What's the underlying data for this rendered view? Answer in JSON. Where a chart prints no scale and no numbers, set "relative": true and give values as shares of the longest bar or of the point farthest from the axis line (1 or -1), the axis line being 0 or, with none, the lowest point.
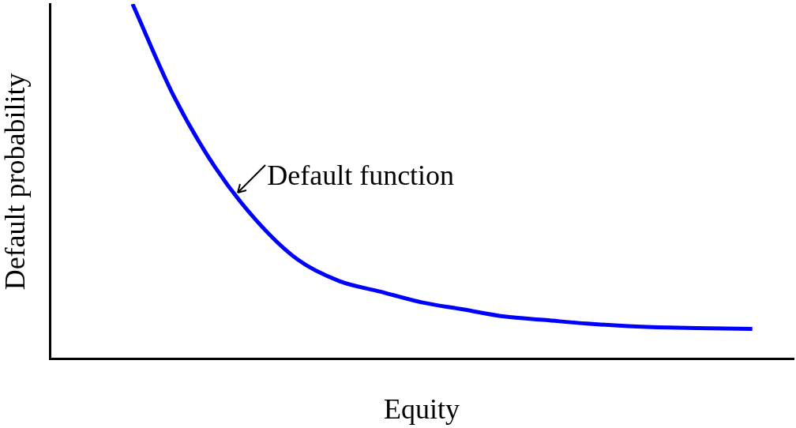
{
  "chart_data": {
    "type": "line",
    "relative": true,
    "xlabel": "Equity",
    "ylabel": "Default probability",
    "categories": [
      null,
      null,
      null,
      null,
      null,
      null,
      null,
      null,
      null,
      null,
      null,
      null,
      null,
      null,
      null,
      null,
      null,
      null,
      null
    ],
    "series": [
      {
        "color": "#0000ff",
        "values": [
          null,
          null,
          1,
          0.74,
          0.54,
          0.39,
          0.28,
          0.22,
          0.19,
          0.16,
          0.14,
          0.12,
          0.11,
          0.1,
          0.093,
          0.089,
          0.087,
          0.085,
          null
        ]
      }
    ],
    "annotations": [
      "Default function"
    ],
    "grid": false,
    "legend": false,
    "marker": "none",
    "line_style": "solid"
  }
}
